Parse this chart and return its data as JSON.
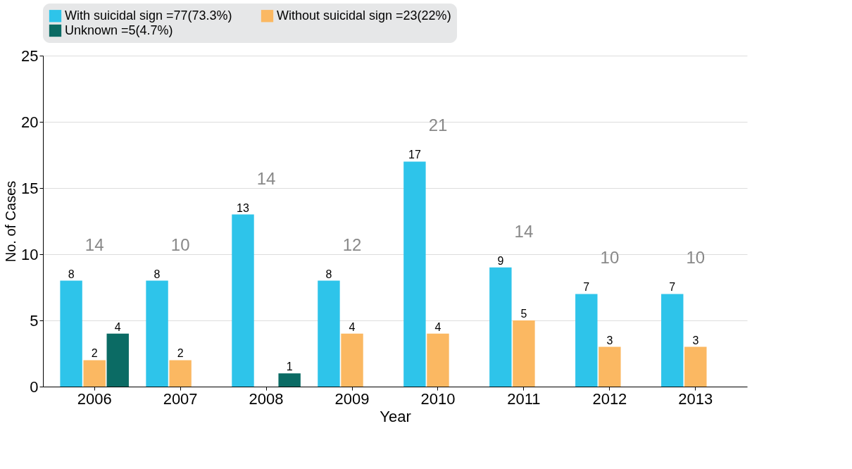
{
  "chart_data": {
    "type": "bar",
    "xlabel": "Year",
    "ylabel": "No. of Cases",
    "categories": [
      "2006",
      "2007",
      "2008",
      "2009",
      "2010",
      "2011",
      "2012",
      "2013"
    ],
    "series": [
      {
        "name": "With suicidal sign =77(73.3%)",
        "color": "#2ec4ea",
        "values": [
          8,
          8,
          13,
          8,
          17,
          9,
          7,
          7
        ]
      },
      {
        "name": "Without suicidal sign =23(22%)",
        "color": "#fbb862",
        "values": [
          2,
          2,
          null,
          4,
          4,
          5,
          3,
          3
        ]
      },
      {
        "name": "Unknown =5(4.7%)",
        "color": "#0b6b64",
        "values": [
          4,
          null,
          1,
          null,
          null,
          null,
          null,
          null
        ]
      }
    ],
    "totals": [
      "14",
      "10",
      "14",
      "12",
      "21",
      "14",
      "10",
      "10"
    ],
    "ylim": [
      0,
      25
    ],
    "yticks": [
      0,
      5,
      10,
      15,
      20,
      25
    ],
    "grid": "y",
    "legend": "top",
    "data_labels": true
  }
}
